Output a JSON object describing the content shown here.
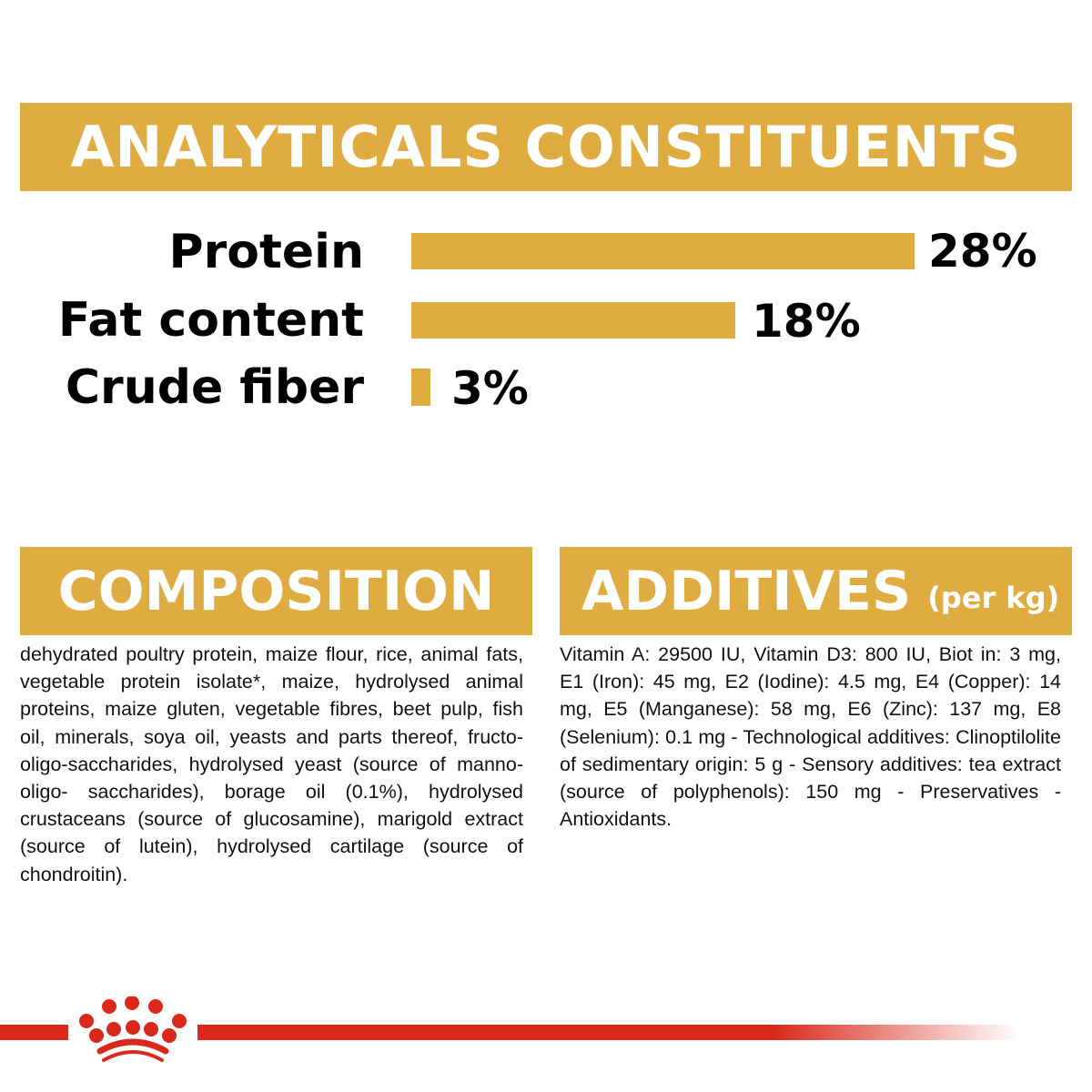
{
  "analyticals": {
    "title": "ANALYTICALS CONSTITUENTS",
    "items": [
      {
        "label": "Protein",
        "value": "28%",
        "percent": 28
      },
      {
        "label": "Fat content",
        "value": "18%",
        "percent": 18
      },
      {
        "label": "Crude fiber",
        "value": "3%",
        "percent": 3
      }
    ]
  },
  "composition": {
    "title": "COMPOSITION",
    "text": "dehydrated poultry protein, maize flour, rice, animal fats, vegetable protein isolate*, maize, hydrolysed animal proteins, maize gluten, vegetable fibres, beet pulp, fish oil, minerals, soya oil, yeasts and parts thereof, fructo-oligo-saccharides, hydrolysed yeast (source of manno-oligo- saccharides), borage oil (0.1%), hydrolysed crustaceans (source of glucosamine), marigold extract (source of lutein), hydrolysed cartilage (source of chondroitin)."
  },
  "additives": {
    "title": "ADDITIVES",
    "subtitle": "(per kg)",
    "text": "Vitamin A: 29500 IU, Vitamin D3: 800 IU, Biot in: 3 mg, E1 (Iron): 45 mg, E2 (Iodine): 4.5 mg, E4 (Copper): 14 mg, E5 (Manganese): 58 mg, E6 (Zinc): 137 mg, E8 (Selenium): 0.1 mg - Technological additives: Clinoptilolite of sedimentary origin: 5 g - Sensory additives: tea extract (source of polyphenols): 150 mg - Preservatives - Antioxidants."
  },
  "colors": {
    "accent": "#DFAC42",
    "brand_red": "#D9291C"
  },
  "footer": {
    "logo": "crown-icon"
  }
}
